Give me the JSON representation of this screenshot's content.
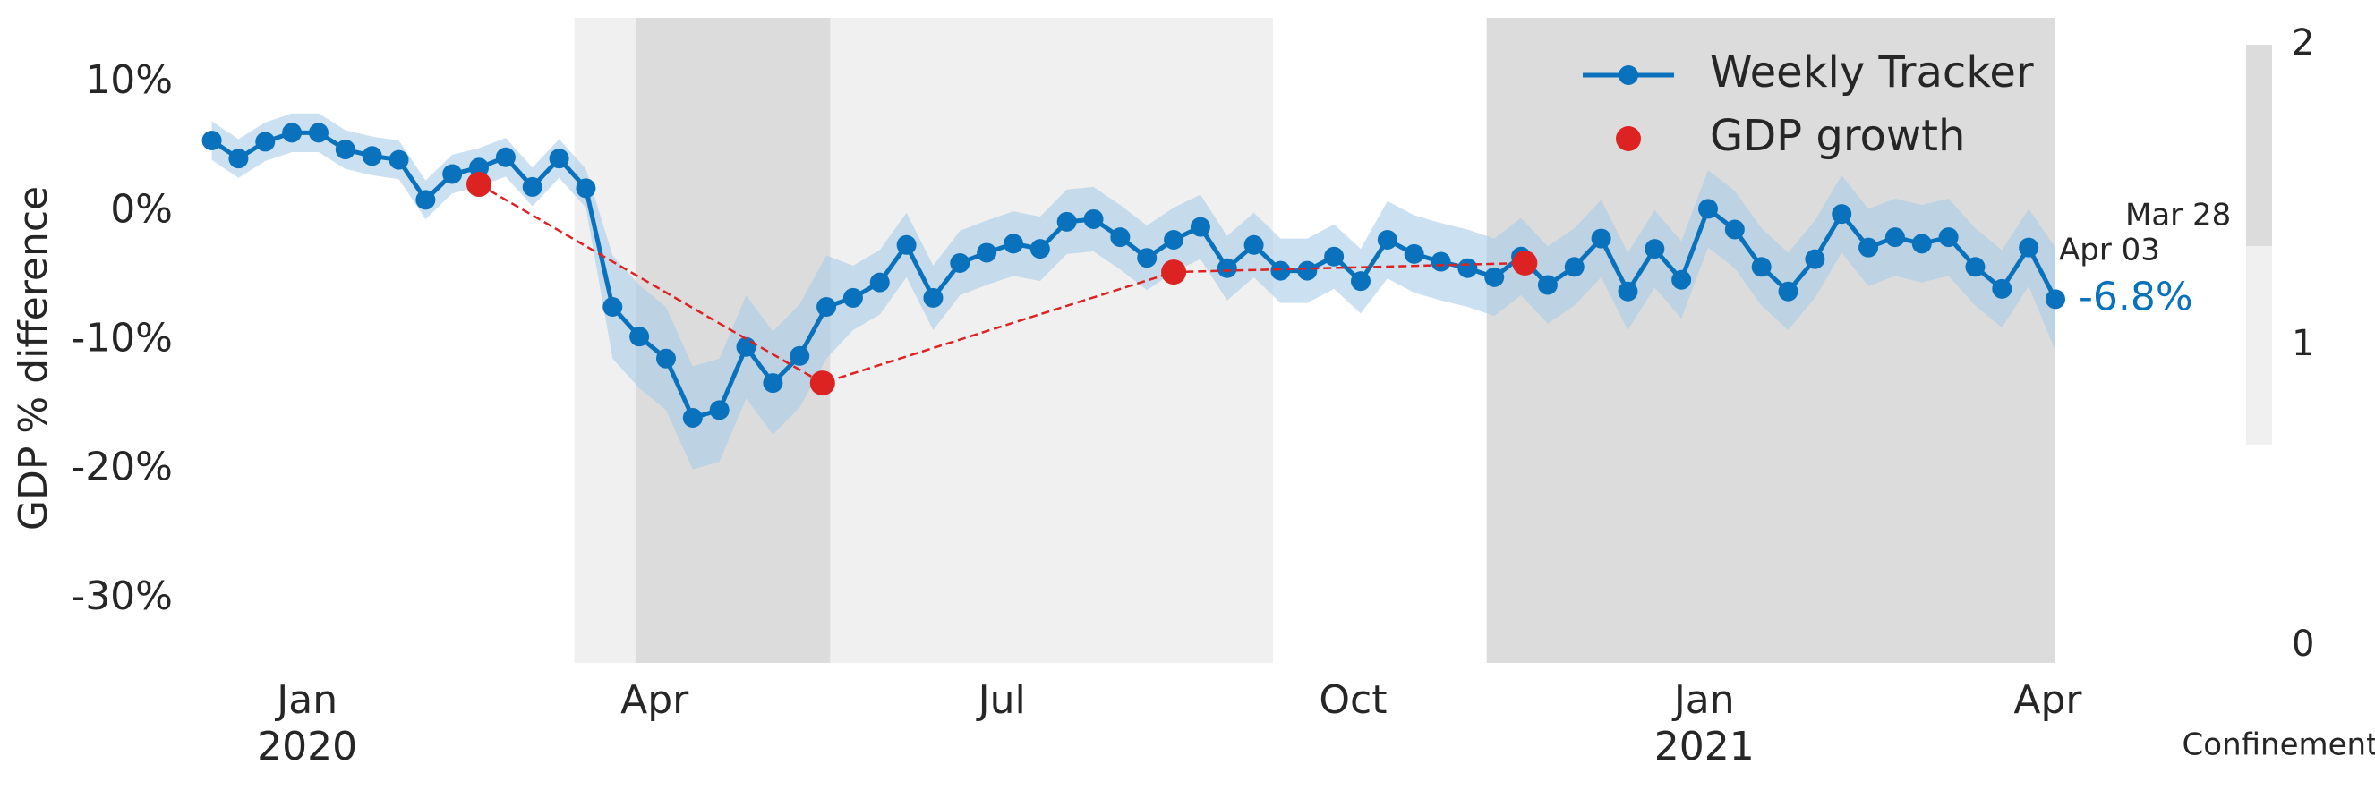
{
  "chart_data": {
    "type": "line",
    "y_label": "GDP % difference",
    "xlim": [
      "2019-12-01",
      "2021-04-03"
    ],
    "ylim": [
      -35,
      15
    ],
    "yticks": [
      {
        "value": 10,
        "label": "10%"
      },
      {
        "value": 0,
        "label": "0%"
      },
      {
        "value": -10,
        "label": "-10%"
      },
      {
        "value": -20,
        "label": "-20%"
      },
      {
        "value": -30,
        "label": "-30%"
      }
    ],
    "xticks": [
      {
        "value": "2020-01-01",
        "label": "Jan"
      },
      {
        "value": "2020-04-01",
        "label": "Apr"
      },
      {
        "value": "2020-07-01",
        "label": "Jul"
      },
      {
        "value": "2020-10-01",
        "label": "Oct"
      },
      {
        "value": "2021-01-01",
        "label": "Jan"
      },
      {
        "value": "2021-04-01",
        "label": "Apr"
      }
    ],
    "xtick_years": [
      {
        "value": "2020-01-01",
        "label": "2020"
      },
      {
        "value": "2021-01-01",
        "label": "2021"
      }
    ],
    "grid": false,
    "legend": "upper right",
    "x": [
      "2019-12-07",
      "2019-12-14",
      "2019-12-21",
      "2019-12-28",
      "2020-01-04",
      "2020-01-11",
      "2020-01-18",
      "2020-01-25",
      "2020-02-01",
      "2020-02-08",
      "2020-02-15",
      "2020-02-22",
      "2020-02-29",
      "2020-03-07",
      "2020-03-14",
      "2020-03-21",
      "2020-03-28",
      "2020-04-04",
      "2020-04-11",
      "2020-04-18",
      "2020-04-25",
      "2020-05-02",
      "2020-05-09",
      "2020-05-16",
      "2020-05-23",
      "2020-05-30",
      "2020-06-06",
      "2020-06-13",
      "2020-06-20",
      "2020-06-27",
      "2020-07-04",
      "2020-07-11",
      "2020-07-18",
      "2020-07-25",
      "2020-08-01",
      "2020-08-08",
      "2020-08-15",
      "2020-08-22",
      "2020-08-29",
      "2020-09-05",
      "2020-09-12",
      "2020-09-19",
      "2020-09-26",
      "2020-10-03",
      "2020-10-10",
      "2020-10-17",
      "2020-10-24",
      "2020-10-31",
      "2020-11-07",
      "2020-11-14",
      "2020-11-21",
      "2020-11-28",
      "2020-12-05",
      "2020-12-12",
      "2020-12-19",
      "2020-12-26",
      "2021-01-02",
      "2021-01-09",
      "2021-01-16",
      "2021-01-23",
      "2021-01-30",
      "2021-02-06",
      "2021-02-13",
      "2021-02-20",
      "2021-02-27",
      "2021-03-06",
      "2021-03-13",
      "2021-03-20",
      "2021-03-27",
      "2021-04-03"
    ],
    "series": [
      {
        "name": "Weekly Tracker",
        "color": "#0a72bd",
        "band_color": "#a9cde8",
        "values": [
          5.5,
          4.1,
          5.4,
          6.1,
          6.1,
          4.8,
          4.3,
          4.0,
          0.9,
          2.9,
          3.4,
          4.2,
          1.9,
          4.1,
          1.8,
          -7.4,
          -9.7,
          -11.4,
          -16.0,
          -15.4,
          -10.5,
          -13.3,
          -11.2,
          -7.4,
          -6.7,
          -5.5,
          -2.6,
          -6.7,
          -4.0,
          -3.2,
          -2.5,
          -2.9,
          -0.8,
          -0.6,
          -2.0,
          -3.6,
          -2.2,
          -1.2,
          -4.4,
          -2.6,
          -4.6,
          -4.6,
          -3.5,
          -5.4,
          -2.2,
          -3.3,
          -3.9,
          -4.4,
          -5.1,
          -3.5,
          -5.7,
          -4.3,
          -2.1,
          -6.2,
          -2.9,
          -5.3,
          0.2,
          -1.4,
          -4.3,
          -6.2,
          -3.7,
          -0.2,
          -2.8,
          -2.0,
          -2.5,
          -2.0,
          -4.3,
          -6.0,
          -2.8,
          -6.8
        ],
        "value_labels": [
          null,
          null,
          null,
          null,
          null,
          null,
          null,
          null,
          null,
          null,
          null,
          null,
          null,
          null,
          null,
          null,
          null,
          null,
          null,
          null,
          null,
          null,
          null,
          null,
          null,
          null,
          null,
          null,
          null,
          null,
          null,
          null,
          null,
          null,
          null,
          null,
          null,
          null,
          null,
          null,
          null,
          null,
          null,
          null,
          null,
          null,
          null,
          null,
          null,
          null,
          null,
          null,
          null,
          null,
          null,
          null,
          null,
          null,
          null,
          null,
          null,
          null,
          null,
          null,
          null,
          null,
          null,
          null,
          null,
          "-6.8%"
        ],
        "upper": [
          7.0,
          5.6,
          6.9,
          7.6,
          7.6,
          6.3,
          5.8,
          5.5,
          2.4,
          4.4,
          4.9,
          5.7,
          3.4,
          5.6,
          3.3,
          -3.4,
          -5.7,
          -7.4,
          -12.0,
          -11.4,
          -6.5,
          -9.3,
          -7.2,
          -3.4,
          -4.2,
          -3.0,
          -0.1,
          -4.2,
          -1.5,
          -0.7,
          0.0,
          -0.4,
          1.7,
          1.9,
          0.5,
          -1.1,
          0.3,
          1.3,
          -1.9,
          -0.1,
          -2.1,
          -2.1,
          -1.0,
          -2.9,
          0.8,
          -0.3,
          -0.9,
          -1.4,
          -2.1,
          -0.5,
          -2.7,
          -1.3,
          0.9,
          -3.2,
          0.1,
          -2.3,
          3.2,
          1.6,
          -1.3,
          -3.2,
          -0.7,
          2.8,
          0.2,
          1.0,
          0.5,
          1.0,
          -1.3,
          -3.0,
          0.2,
          -2.8
        ],
        "lower": [
          4.0,
          2.6,
          3.9,
          4.6,
          4.6,
          3.3,
          2.8,
          2.5,
          -0.6,
          1.4,
          1.9,
          2.7,
          0.4,
          2.6,
          0.3,
          -11.4,
          -13.7,
          -15.4,
          -20.0,
          -19.4,
          -14.5,
          -17.3,
          -15.2,
          -11.4,
          -9.2,
          -8.0,
          -5.1,
          -9.2,
          -6.5,
          -5.7,
          -5.0,
          -5.4,
          -3.3,
          -3.1,
          -4.5,
          -6.1,
          -4.7,
          -3.7,
          -6.9,
          -5.1,
          -7.1,
          -7.1,
          -6.0,
          -7.9,
          -5.2,
          -6.3,
          -6.9,
          -7.4,
          -8.1,
          -6.5,
          -8.7,
          -7.3,
          -5.1,
          -9.2,
          -5.9,
          -8.3,
          -2.8,
          -4.4,
          -7.3,
          -9.2,
          -6.7,
          -3.2,
          -5.8,
          -5.0,
          -5.5,
          -5.0,
          -7.3,
          -9.0,
          -5.8,
          -10.8
        ]
      },
      {
        "name": "GDP growth",
        "color": "#dd2222",
        "x": [
          "2020-02-15",
          "2020-05-15",
          "2020-08-15",
          "2020-11-15"
        ],
        "values": [
          2.1,
          -13.3,
          -4.7,
          -4.0
        ]
      }
    ],
    "last_week": [
      "Mar 28",
      "Apr 03"
    ],
    "regions": [
      {
        "start": "2020-03-11",
        "end": "2020-09-10",
        "level": 1,
        "color": "#f0f0f0"
      },
      {
        "start": "2020-03-27",
        "end": "2020-05-17",
        "level": 2,
        "color": "#dcdcdc"
      },
      {
        "start": "2020-11-05",
        "end": "2021-04-03",
        "level": 2,
        "color": "#dcdcdc"
      }
    ],
    "colorbar": {
      "label": "Confinement",
      "ylim": [
        0,
        2
      ],
      "ticks": [
        0,
        1,
        2
      ],
      "segments": [
        {
          "from": 0.67,
          "to": 1.33,
          "color": "#f0f0f0"
        },
        {
          "from": 1.33,
          "to": 2,
          "color": "#dcdcdc"
        }
      ]
    }
  }
}
